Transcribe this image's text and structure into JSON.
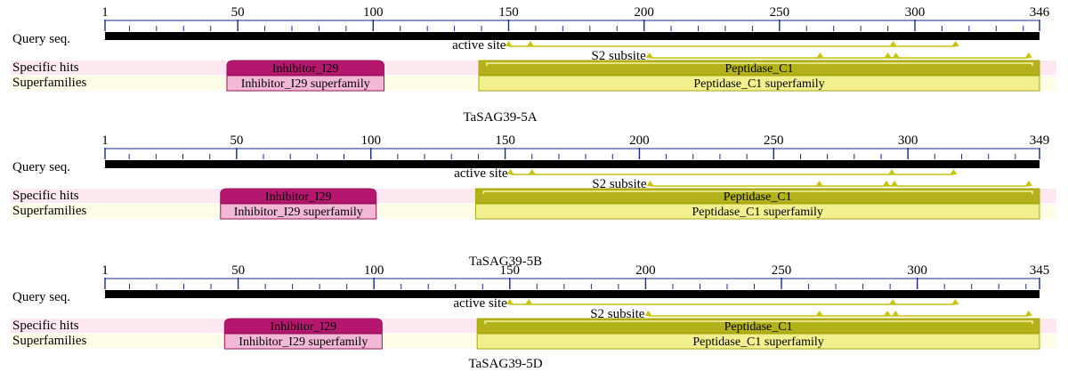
{
  "row_labels": {
    "query": "Query seq.",
    "specific": "Specific hits",
    "super": "Superfamilies"
  },
  "feature_labels": {
    "active_site": "active site",
    "s2_subsite": "S2 subsite"
  },
  "colors": {
    "query_bar": "#000000",
    "tick_blue": "#1a2a8c",
    "specific_band": "#fde8f1",
    "super_band": "#fefde8",
    "inhibitor_fill": "#b5176e",
    "inhibitor_super_fill": "#f2b8d6",
    "inhibitor_border": "#9c1360",
    "peptidase_fill": "#b4b21a",
    "peptidase_super_fill": "#f2f08e",
    "peptidase_border": "#a9a60e",
    "site_color": "#c8c40a"
  },
  "panels": [
    {
      "name": "TaSAG39-5A",
      "length": 346,
      "ticks": [
        1,
        50,
        100,
        150,
        200,
        250,
        300,
        346
      ],
      "domains": [
        {
          "name": "Inhibitor_I29",
          "super": "Inhibitor_I29 superfamily",
          "start": 46,
          "end": 104,
          "family": "inhibitor"
        },
        {
          "name": "Peptidase_C1",
          "super": "Peptidase_C1 superfamily",
          "start": 139,
          "end": 346,
          "family": "peptidase"
        }
      ],
      "active_site": [
        150,
        158,
        292,
        315
      ],
      "s2_subsite": [
        202,
        265,
        290,
        293,
        342
      ]
    },
    {
      "name": "TaSAG39-5B",
      "length": 349,
      "ticks": [
        1,
        50,
        100,
        150,
        200,
        250,
        300,
        349
      ],
      "domains": [
        {
          "name": "Inhibitor_I29",
          "super": "Inhibitor_I29 superfamily",
          "start": 44,
          "end": 102,
          "family": "inhibitor"
        },
        {
          "name": "Peptidase_C1",
          "super": "Peptidase_C1 superfamily",
          "start": 139,
          "end": 349,
          "family": "peptidase"
        }
      ],
      "active_site": [
        152,
        160,
        294,
        317
      ],
      "s2_subsite": [
        204,
        267,
        292,
        295,
        345
      ]
    },
    {
      "name": "TaSAG39-5D",
      "length": 345,
      "ticks": [
        1,
        50,
        100,
        150,
        200,
        250,
        300,
        345
      ],
      "domains": [
        {
          "name": "Inhibitor_I29",
          "super": "Inhibitor_I29 superfamily",
          "start": 45,
          "end": 103,
          "family": "inhibitor"
        },
        {
          "name": "Peptidase_C1",
          "super": "Peptidase_C1 superfamily",
          "start": 138,
          "end": 345,
          "family": "peptidase"
        }
      ],
      "active_site": [
        150,
        157,
        291,
        314
      ],
      "s2_subsite": [
        201,
        264,
        289,
        292,
        341
      ]
    }
  ]
}
